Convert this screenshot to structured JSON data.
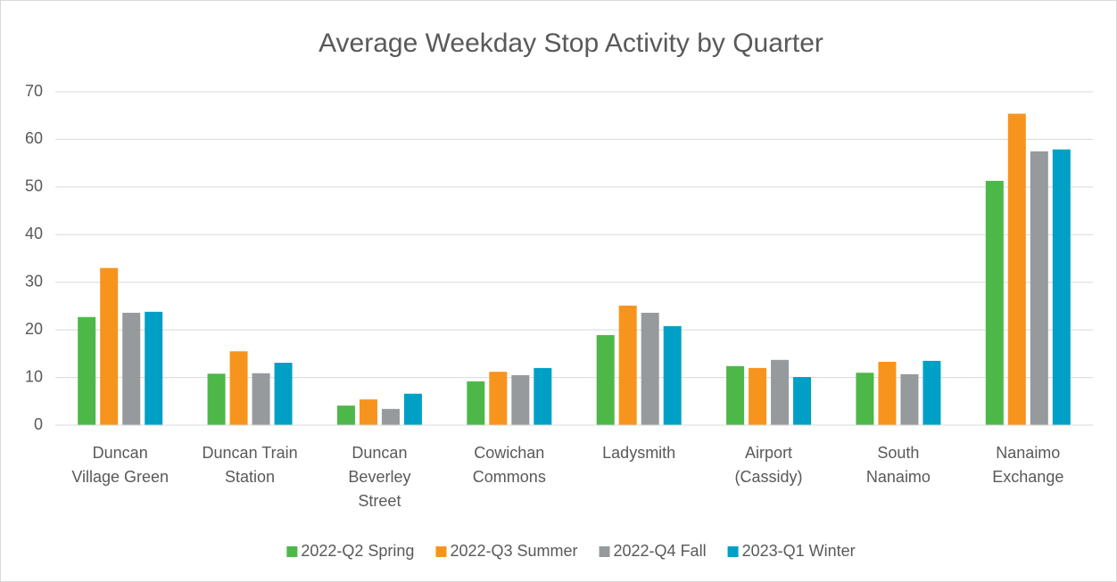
{
  "chart_data": {
    "type": "bar",
    "title": "Average Weekday Stop Activity by Quarter",
    "categories": [
      "Duncan Village Green",
      "Duncan Train Station",
      "Duncan Beverley Street",
      "Cowichan Commons",
      "Ladysmith",
      "Airport (Cassidy)",
      "South Nanaimo",
      "Nanaimo Exchange"
    ],
    "series": [
      {
        "name": "2022-Q2 Spring",
        "color": "#4db848",
        "values": [
          22.7,
          10.8,
          4.1,
          9.2,
          18.9,
          12.4,
          11.0,
          51.3
        ]
      },
      {
        "name": "2022-Q3 Summer",
        "color": "#f7941d",
        "values": [
          33.0,
          15.5,
          5.4,
          11.2,
          25.1,
          12.0,
          13.3,
          65.4
        ]
      },
      {
        "name": "2022-Q4 Fall",
        "color": "#979a9d",
        "values": [
          23.6,
          10.9,
          3.4,
          10.5,
          23.6,
          13.7,
          10.7,
          57.5
        ]
      },
      {
        "name": "2023-Q1 Winter",
        "color": "#00a0c6",
        "values": [
          23.8,
          13.1,
          6.6,
          12.0,
          20.8,
          10.1,
          13.5,
          57.9
        ]
      }
    ],
    "ylim": [
      0,
      70
    ],
    "yticks": [
      0,
      10,
      20,
      30,
      40,
      50,
      60,
      70
    ],
    "grid": true,
    "legend": "bottom"
  }
}
